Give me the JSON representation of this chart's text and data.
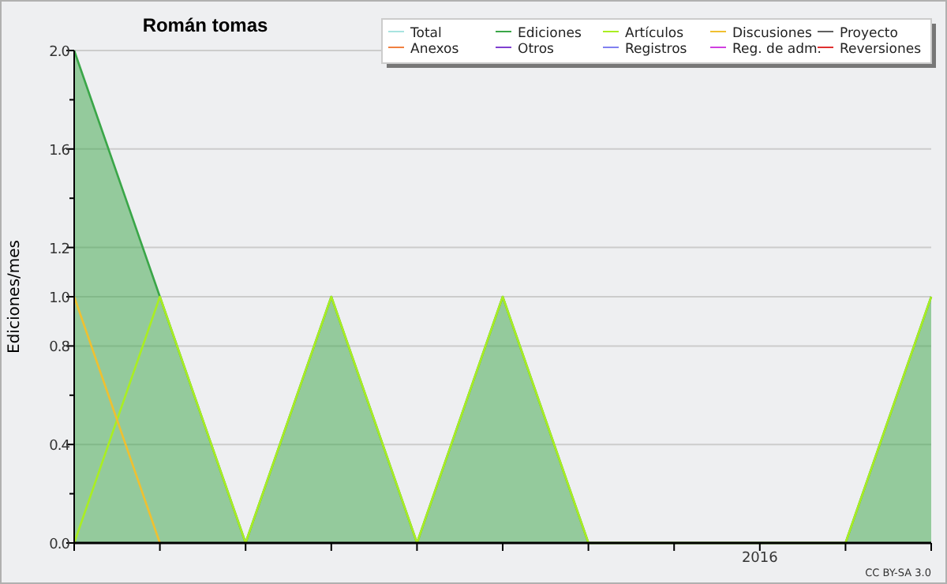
{
  "chart_data": {
    "type": "line",
    "title": "Román tomas",
    "ylabel": "Ediciones/mes",
    "categories": [
      null,
      null,
      null,
      null,
      null,
      null,
      null,
      null,
      "2016",
      null,
      null
    ],
    "series": [
      {
        "name": "Total",
        "color": "#a8e4e0",
        "values": [
          null,
          null,
          null,
          null,
          null,
          null,
          null,
          null,
          null,
          null,
          null
        ]
      },
      {
        "name": "Ediciones",
        "type": "area",
        "color": "#3aa648",
        "values": [
          2,
          1,
          0,
          1,
          0,
          1,
          0,
          0,
          0,
          0,
          1
        ]
      },
      {
        "name": "Artículos",
        "color": "#aaee22",
        "values": [
          0,
          1,
          0,
          1,
          0,
          1,
          0,
          0,
          0,
          0,
          1
        ]
      },
      {
        "name": "Discusiones",
        "color": "#f0c030",
        "values": [
          1,
          0,
          null,
          null,
          null,
          null,
          null,
          null,
          null,
          null,
          null
        ]
      },
      {
        "name": "Proyecto",
        "color": "#606060",
        "values": [
          null,
          null,
          null,
          null,
          null,
          null,
          null,
          null,
          null,
          null,
          null
        ]
      },
      {
        "name": "Anexos",
        "color": "#f08040",
        "values": [
          null,
          null,
          null,
          null,
          null,
          null,
          null,
          null,
          null,
          null,
          null
        ]
      },
      {
        "name": "Otros",
        "color": "#8040d0",
        "values": [
          null,
          null,
          null,
          null,
          null,
          null,
          null,
          null,
          null,
          null,
          null
        ]
      },
      {
        "name": "Registros",
        "color": "#8080f0",
        "values": [
          null,
          null,
          null,
          null,
          null,
          null,
          null,
          null,
          null,
          null,
          null
        ]
      },
      {
        "name": "Reg. de adm.",
        "color": "#d040e0",
        "values": [
          null,
          null,
          null,
          null,
          null,
          null,
          null,
          null,
          null,
          null,
          null
        ]
      },
      {
        "name": "Reversiones",
        "color": "#e03030",
        "values": [
          null,
          null,
          null,
          null,
          null,
          null,
          null,
          null,
          null,
          null,
          null
        ]
      }
    ],
    "ylim": [
      0,
      2
    ],
    "yticks": [
      {
        "value": 0,
        "label": "0.0"
      },
      {
        "value": 0.2,
        "label": null
      },
      0.4,
      {
        "value": 0.6,
        "label": null
      },
      0.8,
      {
        "value": 1,
        "label": "1.0"
      },
      1.2,
      {
        "value": 1.4,
        "label": null
      },
      1.6,
      {
        "value": 1.8,
        "label": null
      },
      {
        "value": 2,
        "label": "2.0"
      }
    ],
    "grid": "y",
    "legend": "top right",
    "marker": "none",
    "annotations": [
      "CC BY-SA 3.0"
    ]
  }
}
